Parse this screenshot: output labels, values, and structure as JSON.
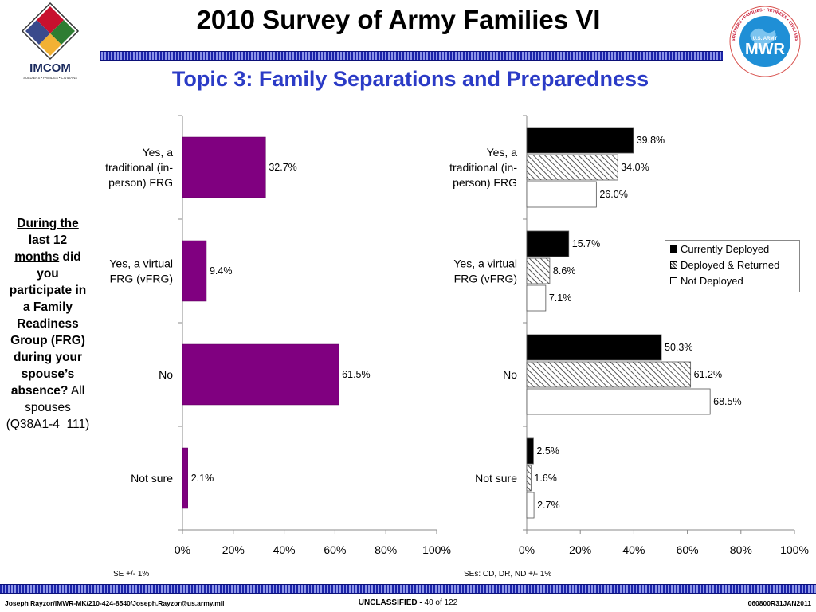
{
  "header": {
    "title": "2010 Survey of Army Families VI",
    "subtitle": "Topic 3: Family Separations and Preparedness",
    "left_logo_text": "IMCOM",
    "left_logo_tagline": "SOLDIERS • FAMILIES • CIVILIANS",
    "right_logo_text": "MWR",
    "right_logo_small": "U.S. ARMY",
    "right_logo_ring": "SOLDIERS • FAMILIES • RETIREES • CIVILIANS"
  },
  "question": {
    "underlined": "During the last 12 months",
    "bold_rest": "did you participate in a Family Readiness Group (FRG) during your spouse’s absence?",
    "plain": "All spouses (Q38A1-4_111)"
  },
  "notes": {
    "left_se": "SE +/- 1%",
    "right_se": "SEs: CD, DR, ND +/- 1%"
  },
  "footer": {
    "left": "Joseph Rayzor/IMWR-MK/210-424-8540/Joseph.Rayzor@us.army.mil",
    "classification": "UNCLASSIFIED -",
    "page": "40 of 122",
    "right": "060800R31JAN2011"
  },
  "colors": {
    "purple_bar": "#800080",
    "deployed": "#000000",
    "accent_blue": "#2b3bc6"
  },
  "chart_data": [
    {
      "type": "bar",
      "orientation": "horizontal",
      "categories": [
        "Yes, a traditional (in-person) FRG",
        "Yes, a virtual FRG (vFRG)",
        "No",
        "Not sure"
      ],
      "category_lines": [
        [
          "Yes, a",
          "traditional (in-",
          "person) FRG"
        ],
        [
          "Yes, a virtual",
          "FRG (vFRG)"
        ],
        [
          "No"
        ],
        [
          "Not sure"
        ]
      ],
      "values": [
        32.7,
        9.4,
        61.5,
        2.1
      ],
      "value_labels": [
        "32.7%",
        "9.4%",
        "61.5%",
        "2.1%"
      ],
      "xlim": [
        0,
        100
      ],
      "x_ticks": [
        "0%",
        "20%",
        "40%",
        "60%",
        "80%",
        "100%"
      ],
      "grid": false
    },
    {
      "type": "bar",
      "orientation": "horizontal",
      "categories": [
        "Yes, a traditional (in-person) FRG",
        "Yes, a virtual FRG (vFRG)",
        "No",
        "Not sure"
      ],
      "category_lines": [
        [
          "Yes, a",
          "traditional (in-",
          "person) FRG"
        ],
        [
          "Yes, a virtual",
          "FRG (vFRG)"
        ],
        [
          "No"
        ],
        [
          "Not sure"
        ]
      ],
      "series": [
        {
          "name": "Currently Deployed",
          "values": [
            39.8,
            15.7,
            50.3,
            2.5
          ],
          "labels": [
            "39.8%",
            "15.7%",
            "50.3%",
            "2.5%"
          ],
          "fill": "solid-black"
        },
        {
          "name": "Deployed & Returned",
          "values": [
            34.0,
            8.6,
            61.2,
            1.6
          ],
          "labels": [
            "34.0%",
            "8.6%",
            "61.2%",
            "1.6%"
          ],
          "fill": "hatch"
        },
        {
          "name": "Not Deployed",
          "values": [
            26.0,
            7.1,
            68.5,
            2.7
          ],
          "labels": [
            "26.0%",
            "7.1%",
            "68.5%",
            "2.7%"
          ],
          "fill": "white"
        }
      ],
      "xlim": [
        0,
        100
      ],
      "x_ticks": [
        "0%",
        "20%",
        "40%",
        "60%",
        "80%",
        "100%"
      ],
      "legend": "right",
      "grid": false
    }
  ]
}
